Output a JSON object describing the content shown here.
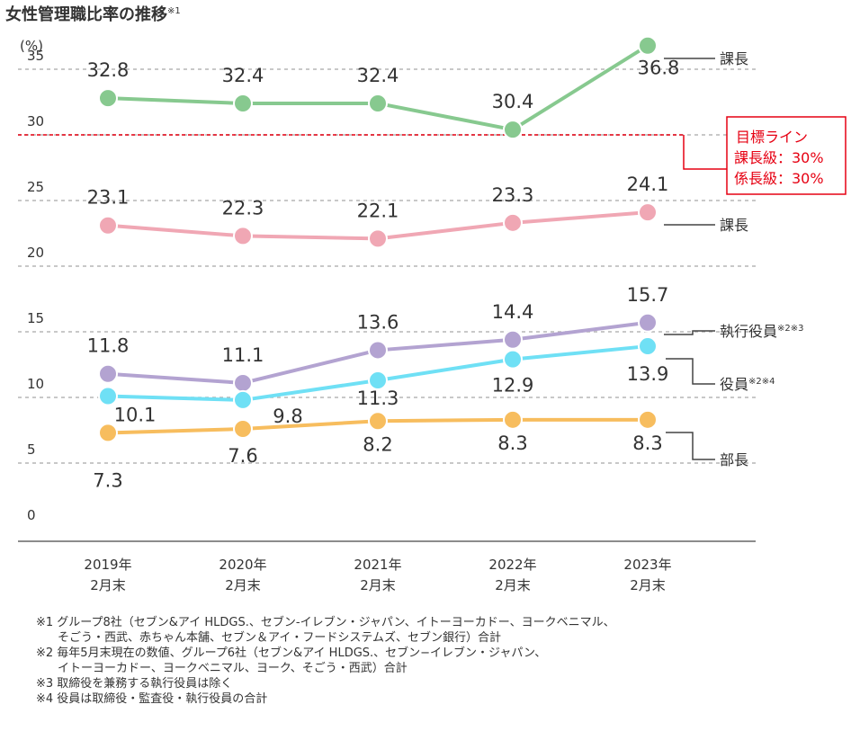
{
  "title": "女性管理職比率の推移",
  "title_note": "※1",
  "chart_data": {
    "type": "line",
    "title": "女性管理職比率の推移",
    "ylabel": "(%)",
    "ylim": [
      0,
      35
    ],
    "yticks": [
      "35",
      "30",
      "25",
      "20",
      "15",
      "10",
      "5",
      "0"
    ],
    "yticks_values": [
      35,
      30,
      25,
      20,
      15,
      10,
      5,
      0
    ],
    "categories": [
      {
        "year": "2019年",
        "month": "2月末"
      },
      {
        "year": "2020年",
        "month": "2月末"
      },
      {
        "year": "2021年",
        "month": "2月末"
      },
      {
        "year": "2022年",
        "month": "2月末"
      },
      {
        "year": "2023年",
        "month": "2月末"
      }
    ],
    "series": [
      {
        "name": "課長",
        "color": "#87c98f",
        "values": [
          32.8,
          32.4,
          32.4,
          30.4,
          36.8
        ],
        "labels": [
          "32.8",
          "32.4",
          "32.4",
          "30.4",
          "36.8"
        ]
      },
      {
        "name": "課長",
        "color": "#f0a7b4",
        "values": [
          23.1,
          22.3,
          22.1,
          23.3,
          24.1
        ],
        "labels": [
          "23.1",
          "22.3",
          "22.1",
          "23.3",
          "24.1"
        ]
      },
      {
        "name": "執行役員",
        "sup": "※2※3",
        "color": "#b3a3d1",
        "values": [
          11.8,
          11.1,
          13.6,
          14.4,
          15.7
        ],
        "labels": [
          "11.8",
          "11.1",
          "13.6",
          "14.4",
          "15.7"
        ]
      },
      {
        "name": "役員",
        "sup": "※2※4",
        "color": "#6fe0f5",
        "values": [
          10.1,
          9.8,
          11.3,
          12.9,
          13.9
        ],
        "labels": [
          "10.1",
          "9.8",
          "11.3",
          "12.9",
          "13.9"
        ]
      },
      {
        "name": "部長",
        "color": "#f7bd5e",
        "values": [
          7.3,
          7.6,
          8.2,
          8.3,
          8.3
        ],
        "labels": [
          "7.3",
          "7.6",
          "8.2",
          "8.3",
          "8.3"
        ]
      }
    ],
    "target": {
      "value": 30,
      "color": "#e60012",
      "lines": [
        "目標ライン",
        "課長級：30%",
        "係長級：30%"
      ]
    }
  },
  "notes": [
    {
      "text": "※1 グループ8社（セブン&アイ HLDGS.、セブン-イレブン・ジャパン、イトーヨーカドー、ヨークベニマル、",
      "indent": false
    },
    {
      "text": "そごう・西武、赤ちゃん本舗、セブン＆アイ・フードシステムズ、セブン銀行）合計",
      "indent": true
    },
    {
      "text": "※2 毎年5月末現在の数値、グループ6社（セブン&アイ HLDGS.、セブン−イレブン・ジャパン、",
      "indent": false
    },
    {
      "text": "イトーヨーカドー、ヨークベニマル、ヨーク、そごう・西武）合計",
      "indent": true
    },
    {
      "text": "※3 取締役を兼務する執行役員は除く",
      "indent": false
    },
    {
      "text": "※4 役員は取締役・監査役・執行役員の合計",
      "indent": false
    }
  ]
}
